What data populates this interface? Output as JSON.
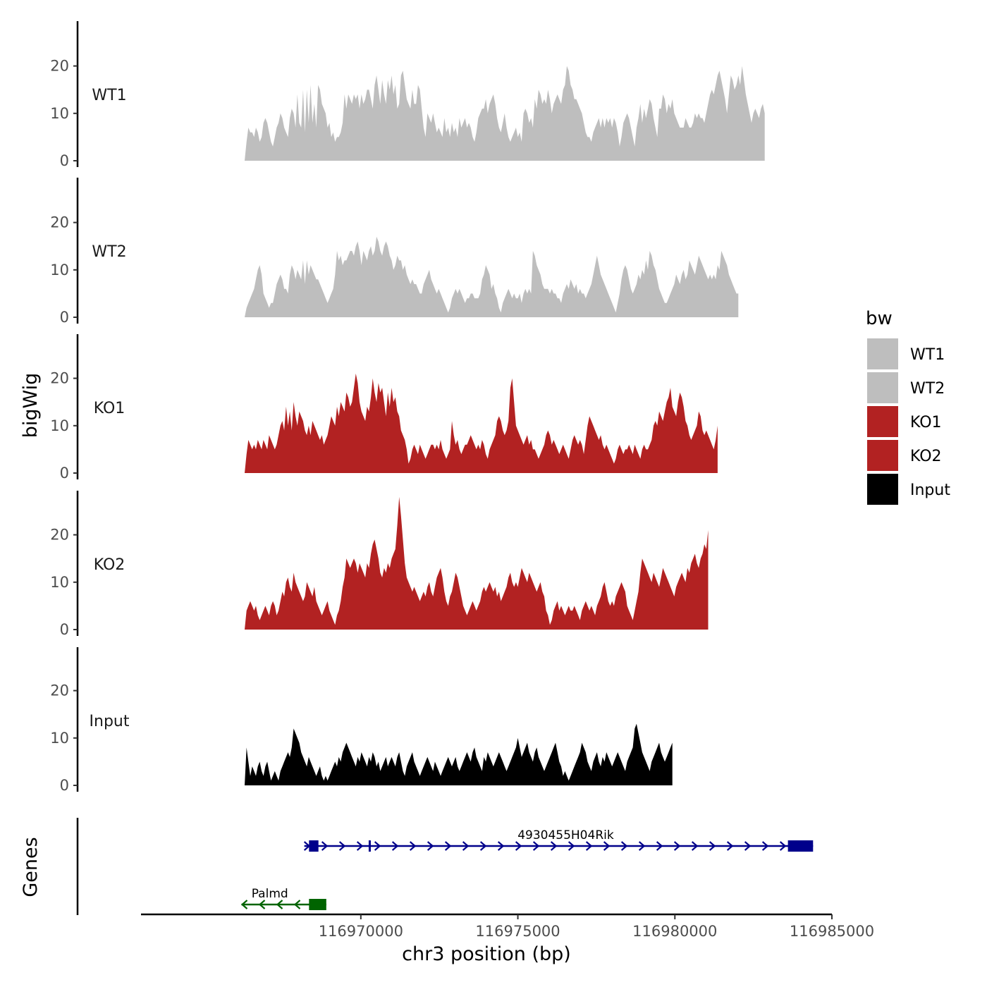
{
  "chart_data": {
    "type": "area",
    "xlabel": "chr3 position (bp)",
    "ylabel": "bigWig",
    "genes_label": "Genes",
    "xlim": [
      116963000,
      116985000
    ],
    "ylim": [
      0,
      29
    ],
    "x_ticks": [
      {
        "value": 116970000,
        "label": "116970000"
      },
      {
        "value": 116975000,
        "label": "116975000"
      },
      {
        "value": 116980000,
        "label": "116980000"
      },
      {
        "value": 116985000,
        "label": "116985000"
      }
    ],
    "y_ticks": [
      {
        "value": 0,
        "label": "0"
      },
      {
        "value": 10,
        "label": "10"
      },
      {
        "value": 20,
        "label": "20"
      }
    ],
    "x_start": 116966300,
    "x_step": 60,
    "legend": {
      "title": "bw",
      "entries": [
        {
          "label": "WT1",
          "color": "#bebebe"
        },
        {
          "label": "WT2",
          "color": "#bebebe"
        },
        {
          "label": "KO1",
          "color": "#b22222"
        },
        {
          "label": "KO2",
          "color": "#b22222"
        },
        {
          "label": "Input",
          "color": "#000000"
        }
      ]
    },
    "series": [
      {
        "name": "WT1",
        "color": "#bebebe",
        "values": [
          0,
          4,
          7,
          6,
          6,
          5,
          7,
          6,
          4,
          5,
          8,
          9,
          8,
          6,
          4,
          3,
          5,
          7,
          8,
          10,
          9,
          7,
          6,
          5,
          9,
          11,
          10,
          7,
          14,
          8,
          7,
          15,
          6,
          15,
          8,
          16,
          8,
          12,
          7,
          16,
          15,
          12,
          11,
          10,
          7,
          8,
          5,
          6,
          4,
          5,
          5,
          6,
          8,
          14,
          11,
          14,
          13,
          12,
          14,
          13,
          14,
          11,
          14,
          12,
          13,
          15,
          15,
          13,
          11,
          16,
          18,
          15,
          12,
          17,
          14,
          12,
          17,
          15,
          18,
          14,
          16,
          11,
          12,
          18,
          19,
          16,
          13,
          12,
          11,
          15,
          12,
          12,
          16,
          15,
          11,
          7,
          5,
          10,
          9,
          8,
          10,
          8,
          6,
          7,
          6,
          5,
          9,
          6,
          7,
          5,
          8,
          6,
          7,
          5,
          9,
          7,
          8,
          9,
          7,
          8,
          7,
          5,
          4,
          6,
          9,
          10,
          11,
          11,
          13,
          10,
          12,
          13,
          14,
          12,
          9,
          7,
          6,
          8,
          10,
          7,
          5,
          4,
          5,
          6,
          7,
          5,
          6,
          4,
          10,
          11,
          10,
          8,
          9,
          7,
          13,
          11,
          15,
          14,
          12,
          13,
          12,
          15,
          13,
          10,
          12,
          13,
          14,
          13,
          12,
          15,
          16,
          20,
          19,
          16,
          15,
          13,
          13,
          12,
          11,
          10,
          8,
          6,
          5,
          5,
          4,
          6,
          7,
          8,
          9,
          7,
          9,
          7,
          9,
          8,
          9,
          7,
          9,
          8,
          6,
          3,
          5,
          8,
          9,
          10,
          9,
          7,
          5,
          3,
          7,
          9,
          12,
          8,
          11,
          9,
          11,
          13,
          12,
          9,
          7,
          5,
          11,
          11,
          14,
          13,
          10,
          12,
          11,
          13,
          10,
          9,
          8,
          7,
          7,
          7,
          9,
          8,
          7,
          7,
          8,
          10,
          9,
          10,
          9,
          9,
          8,
          10,
          12,
          14,
          15,
          14,
          16,
          18,
          19,
          17,
          15,
          13,
          10,
          14,
          18,
          17,
          15,
          16,
          18,
          16,
          20,
          17,
          14,
          12,
          10,
          8,
          10,
          11,
          10,
          9,
          11,
          12,
          10
        ]
      },
      {
        "name": "WT2",
        "color": "#bebebe",
        "values": [
          0,
          2,
          3,
          4,
          5,
          6,
          8,
          10,
          11,
          9,
          5,
          4,
          3,
          2,
          3,
          3,
          5,
          7,
          8,
          9,
          8,
          6,
          6,
          5,
          9,
          11,
          10,
          8,
          10,
          9,
          8,
          12,
          7,
          12,
          9,
          11,
          10,
          9,
          8,
          8,
          7,
          6,
          5,
          4,
          3,
          4,
          5,
          6,
          9,
          14,
          12,
          13,
          11,
          12,
          12,
          13,
          14,
          14,
          13,
          15,
          16,
          14,
          11,
          14,
          13,
          12,
          14,
          15,
          13,
          14,
          17,
          16,
          14,
          13,
          15,
          16,
          15,
          13,
          12,
          10,
          11,
          13,
          12,
          12,
          10,
          11,
          9,
          8,
          7,
          8,
          7,
          7,
          6,
          5,
          5,
          7,
          8,
          9,
          10,
          8,
          7,
          6,
          5,
          6,
          5,
          4,
          3,
          2,
          1,
          2,
          4,
          5,
          6,
          5,
          6,
          5,
          4,
          3,
          4,
          4,
          5,
          5,
          4,
          4,
          4,
          5,
          8,
          9,
          11,
          10,
          9,
          6,
          7,
          5,
          4,
          2,
          1,
          3,
          4,
          5,
          6,
          5,
          4,
          5,
          4,
          4,
          5,
          3,
          5,
          6,
          5,
          6,
          5,
          14,
          13,
          11,
          10,
          9,
          7,
          6,
          6,
          6,
          5,
          6,
          5,
          5,
          4,
          4,
          3,
          5,
          6,
          7,
          6,
          8,
          7,
          6,
          7,
          5,
          6,
          5,
          5,
          4,
          5,
          6,
          7,
          9,
          11,
          13,
          11,
          9,
          8,
          7,
          6,
          5,
          4,
          3,
          2,
          1,
          3,
          5,
          8,
          10,
          11,
          10,
          8,
          6,
          5,
          6,
          7,
          9,
          8,
          10,
          9,
          12,
          10,
          14,
          13,
          11,
          10,
          8,
          6,
          5,
          4,
          3,
          3,
          4,
          5,
          6,
          7,
          9,
          8,
          7,
          9,
          10,
          8,
          9,
          12,
          11,
          10,
          9,
          11,
          13,
          12,
          11,
          10,
          9,
          8,
          9,
          8,
          9,
          8,
          11,
          10,
          14,
          13,
          12,
          11,
          9,
          8,
          7,
          6,
          5,
          5
        ]
      },
      {
        "name": "KO1",
        "color": "#b22222",
        "values": [
          0,
          4,
          7,
          6,
          5,
          6,
          5,
          7,
          6,
          5,
          7,
          6,
          5,
          8,
          7,
          6,
          5,
          6,
          8,
          10,
          11,
          9,
          14,
          10,
          13,
          9,
          15,
          12,
          10,
          13,
          12,
          11,
          9,
          8,
          10,
          8,
          11,
          10,
          9,
          8,
          7,
          8,
          6,
          7,
          8,
          10,
          12,
          11,
          10,
          14,
          12,
          15,
          14,
          13,
          17,
          16,
          14,
          15,
          18,
          21,
          19,
          15,
          13,
          12,
          11,
          14,
          13,
          16,
          20,
          17,
          15,
          19,
          17,
          18,
          15,
          12,
          17,
          14,
          18,
          15,
          16,
          13,
          12,
          9,
          8,
          7,
          5,
          2,
          3,
          5,
          6,
          5,
          4,
          6,
          5,
          4,
          3,
          4,
          5,
          6,
          6,
          5,
          6,
          5,
          7,
          5,
          4,
          3,
          4,
          5,
          11,
          8,
          6,
          7,
          5,
          4,
          5,
          6,
          6,
          7,
          8,
          7,
          6,
          5,
          6,
          5,
          7,
          6,
          4,
          3,
          5,
          6,
          7,
          8,
          11,
          12,
          11,
          9,
          8,
          9,
          11,
          18,
          20,
          15,
          10,
          9,
          8,
          7,
          6,
          7,
          8,
          6,
          7,
          5,
          5,
          4,
          3,
          4,
          5,
          6,
          8,
          9,
          8,
          6,
          7,
          6,
          5,
          4,
          5,
          6,
          5,
          4,
          3,
          5,
          7,
          8,
          7,
          6,
          7,
          6,
          4,
          7,
          10,
          12,
          11,
          10,
          9,
          8,
          7,
          8,
          6,
          5,
          6,
          5,
          4,
          3,
          2,
          3,
          5,
          6,
          5,
          4,
          5,
          5,
          6,
          5,
          4,
          6,
          5,
          4,
          3,
          5,
          6,
          5,
          5,
          6,
          7,
          10,
          11,
          10,
          13,
          12,
          11,
          13,
          15,
          16,
          18,
          14,
          13,
          12,
          15,
          17,
          16,
          14,
          11,
          10,
          8,
          7,
          8,
          9,
          10,
          13,
          12,
          9,
          8,
          9,
          8,
          7,
          6,
          5,
          7,
          10
        ]
      },
      {
        "name": "KO2",
        "color": "#b22222",
        "values": [
          0,
          4,
          5,
          6,
          5,
          4,
          5,
          3,
          2,
          3,
          4,
          5,
          4,
          3,
          5,
          6,
          5,
          3,
          4,
          6,
          8,
          7,
          10,
          11,
          9,
          8,
          12,
          10,
          9,
          8,
          7,
          6,
          7,
          10,
          9,
          8,
          7,
          9,
          6,
          5,
          4,
          3,
          4,
          5,
          6,
          4,
          3,
          2,
          1,
          3,
          4,
          6,
          9,
          11,
          15,
          14,
          13,
          14,
          15,
          14,
          12,
          14,
          13,
          12,
          11,
          14,
          13,
          16,
          18,
          19,
          17,
          15,
          12,
          11,
          13,
          12,
          14,
          13,
          15,
          16,
          17,
          22,
          28,
          24,
          19,
          14,
          11,
          10,
          9,
          8,
          9,
          8,
          7,
          6,
          7,
          8,
          7,
          9,
          10,
          8,
          7,
          9,
          11,
          12,
          13,
          11,
          8,
          6,
          5,
          7,
          8,
          10,
          12,
          11,
          9,
          7,
          5,
          4,
          3,
          4,
          5,
          6,
          5,
          4,
          5,
          6,
          8,
          9,
          8,
          9,
          10,
          9,
          8,
          9,
          7,
          8,
          6,
          7,
          8,
          9,
          11,
          12,
          10,
          9,
          10,
          9,
          11,
          13,
          12,
          11,
          10,
          12,
          11,
          10,
          9,
          8,
          9,
          10,
          8,
          7,
          4,
          3,
          1,
          2,
          4,
          5,
          6,
          4,
          5,
          4,
          3,
          4,
          5,
          4,
          4,
          5,
          4,
          3,
          2,
          4,
          5,
          6,
          5,
          4,
          5,
          4,
          3,
          5,
          6,
          7,
          9,
          10,
          8,
          6,
          5,
          6,
          5,
          7,
          8,
          9,
          10,
          9,
          8,
          5,
          4,
          3,
          2,
          4,
          6,
          8,
          12,
          15,
          14,
          13,
          12,
          11,
          10,
          12,
          11,
          10,
          9,
          11,
          13,
          12,
          11,
          10,
          9,
          8,
          7,
          9,
          10,
          11,
          12,
          11,
          10,
          13,
          12,
          14,
          15,
          16,
          14,
          13,
          15,
          16,
          18,
          17,
          21
        ]
      },
      {
        "name": "Input",
        "color": "#000000",
        "values": [
          0,
          8,
          5,
          2,
          4,
          3,
          2,
          4,
          5,
          3,
          2,
          4,
          5,
          3,
          1,
          2,
          3,
          2,
          1,
          3,
          4,
          5,
          6,
          7,
          6,
          8,
          12,
          11,
          10,
          9,
          7,
          6,
          5,
          4,
          6,
          5,
          4,
          3,
          2,
          3,
          4,
          2,
          1,
          2,
          1,
          2,
          3,
          4,
          5,
          4,
          6,
          5,
          7,
          8,
          9,
          8,
          7,
          6,
          5,
          4,
          6,
          5,
          7,
          6,
          5,
          4,
          6,
          5,
          7,
          6,
          4,
          5,
          3,
          4,
          5,
          6,
          4,
          5,
          6,
          5,
          4,
          6,
          7,
          5,
          3,
          2,
          4,
          5,
          6,
          7,
          5,
          4,
          3,
          2,
          3,
          4,
          5,
          6,
          5,
          4,
          3,
          5,
          4,
          3,
          2,
          3,
          4,
          5,
          6,
          5,
          4,
          5,
          6,
          4,
          3,
          4,
          5,
          6,
          7,
          6,
          5,
          7,
          8,
          6,
          5,
          4,
          3,
          6,
          5,
          7,
          6,
          5,
          4,
          5,
          6,
          7,
          6,
          5,
          4,
          3,
          4,
          5,
          6,
          7,
          8,
          10,
          8,
          6,
          7,
          8,
          9,
          7,
          6,
          5,
          7,
          8,
          6,
          5,
          4,
          3,
          4,
          5,
          6,
          7,
          8,
          9,
          7,
          5,
          4,
          2,
          3,
          2,
          1,
          2,
          3,
          4,
          5,
          6,
          7,
          9,
          8,
          7,
          5,
          4,
          3,
          5,
          6,
          7,
          5,
          4,
          6,
          5,
          7,
          6,
          5,
          4,
          5,
          6,
          7,
          6,
          5,
          4,
          3,
          5,
          6,
          7,
          8,
          12,
          13,
          11,
          9,
          7,
          6,
          5,
          4,
          3,
          5,
          6,
          7,
          8,
          9,
          7,
          6,
          5,
          6,
          7,
          8,
          9
        ]
      }
    ],
    "genes": [
      {
        "name": "4930455H04Rik",
        "strand": "+",
        "color": "#00008b",
        "start": 116968200,
        "end": 116984400,
        "exons": [
          [
            116968350,
            116968650
          ],
          [
            116970250,
            116970300
          ],
          [
            116983600,
            116984400
          ]
        ]
      },
      {
        "name": "Palmd",
        "strand": "-",
        "color": "#006400",
        "start": 116966200,
        "end": 116968900,
        "exons": [
          [
            116968350,
            116968900
          ]
        ]
      }
    ]
  }
}
